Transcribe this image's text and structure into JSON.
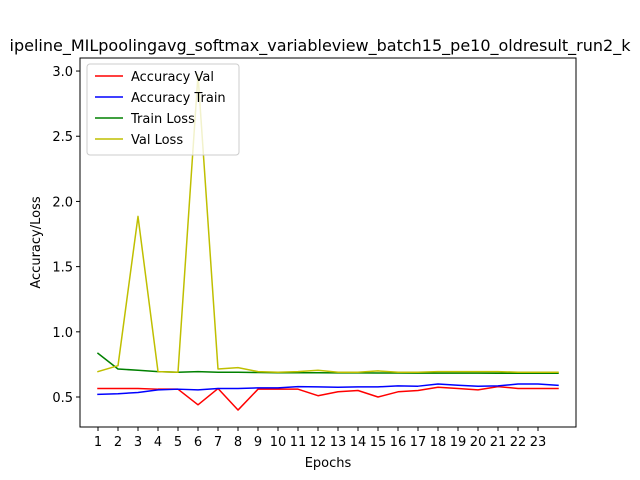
{
  "chart_data": {
    "type": "line",
    "title": "ipeline_MILpoolingavg_softmax_variableview_batch15_pe10_oldresult_run2_k",
    "xlabel": "Epochs",
    "ylabel": "Accuracy/Loss",
    "x": [
      1,
      2,
      3,
      4,
      5,
      6,
      7,
      8,
      9,
      10,
      11,
      12,
      13,
      14,
      15,
      16,
      17,
      18,
      19,
      20,
      21,
      22,
      23,
      24
    ],
    "xticks": [
      "1",
      "2",
      "3",
      "4",
      "5",
      "6",
      "7",
      "8",
      "9",
      "10",
      "11",
      "12",
      "13",
      "14",
      "15",
      "16",
      "17",
      "18",
      "19",
      "20",
      "21",
      "22",
      "23"
    ],
    "xlim": [
      0.1,
      24.9
    ],
    "yticks": [
      "0.5",
      "1.0",
      "1.5",
      "2.0",
      "2.5",
      "3.0"
    ],
    "ylim": [
      0.27,
      3.1
    ],
    "grid": false,
    "legend_position": "top-left",
    "series": [
      {
        "name": "Accuracy Val",
        "color": "#ff0000",
        "values": [
          0.565,
          0.565,
          0.565,
          0.56,
          0.56,
          0.44,
          0.565,
          0.4,
          0.56,
          0.56,
          0.56,
          0.51,
          0.54,
          0.55,
          0.5,
          0.54,
          0.55,
          0.575,
          0.565,
          0.555,
          0.58,
          0.565,
          0.565,
          0.565
        ]
      },
      {
        "name": "Accuracy Train",
        "color": "#0000ff",
        "values": [
          0.52,
          0.525,
          0.535,
          0.555,
          0.56,
          0.555,
          0.565,
          0.565,
          0.57,
          0.57,
          0.58,
          0.578,
          0.575,
          0.578,
          0.578,
          0.585,
          0.583,
          0.6,
          0.59,
          0.583,
          0.585,
          0.6,
          0.6,
          0.59
        ]
      },
      {
        "name": "Train Loss",
        "color": "#008000",
        "values": [
          0.835,
          0.715,
          0.705,
          0.695,
          0.69,
          0.695,
          0.69,
          0.69,
          0.688,
          0.686,
          0.686,
          0.686,
          0.685,
          0.685,
          0.684,
          0.684,
          0.683,
          0.683,
          0.683,
          0.683,
          0.682,
          0.682,
          0.682,
          0.682
        ]
      },
      {
        "name": "Val Loss",
        "color": "#bfbf00",
        "values": [
          0.695,
          0.74,
          1.885,
          0.695,
          0.69,
          2.97,
          0.715,
          0.725,
          0.695,
          0.69,
          0.695,
          0.705,
          0.69,
          0.69,
          0.7,
          0.69,
          0.69,
          0.695,
          0.695,
          0.695,
          0.695,
          0.69,
          0.69,
          0.69
        ]
      }
    ]
  }
}
